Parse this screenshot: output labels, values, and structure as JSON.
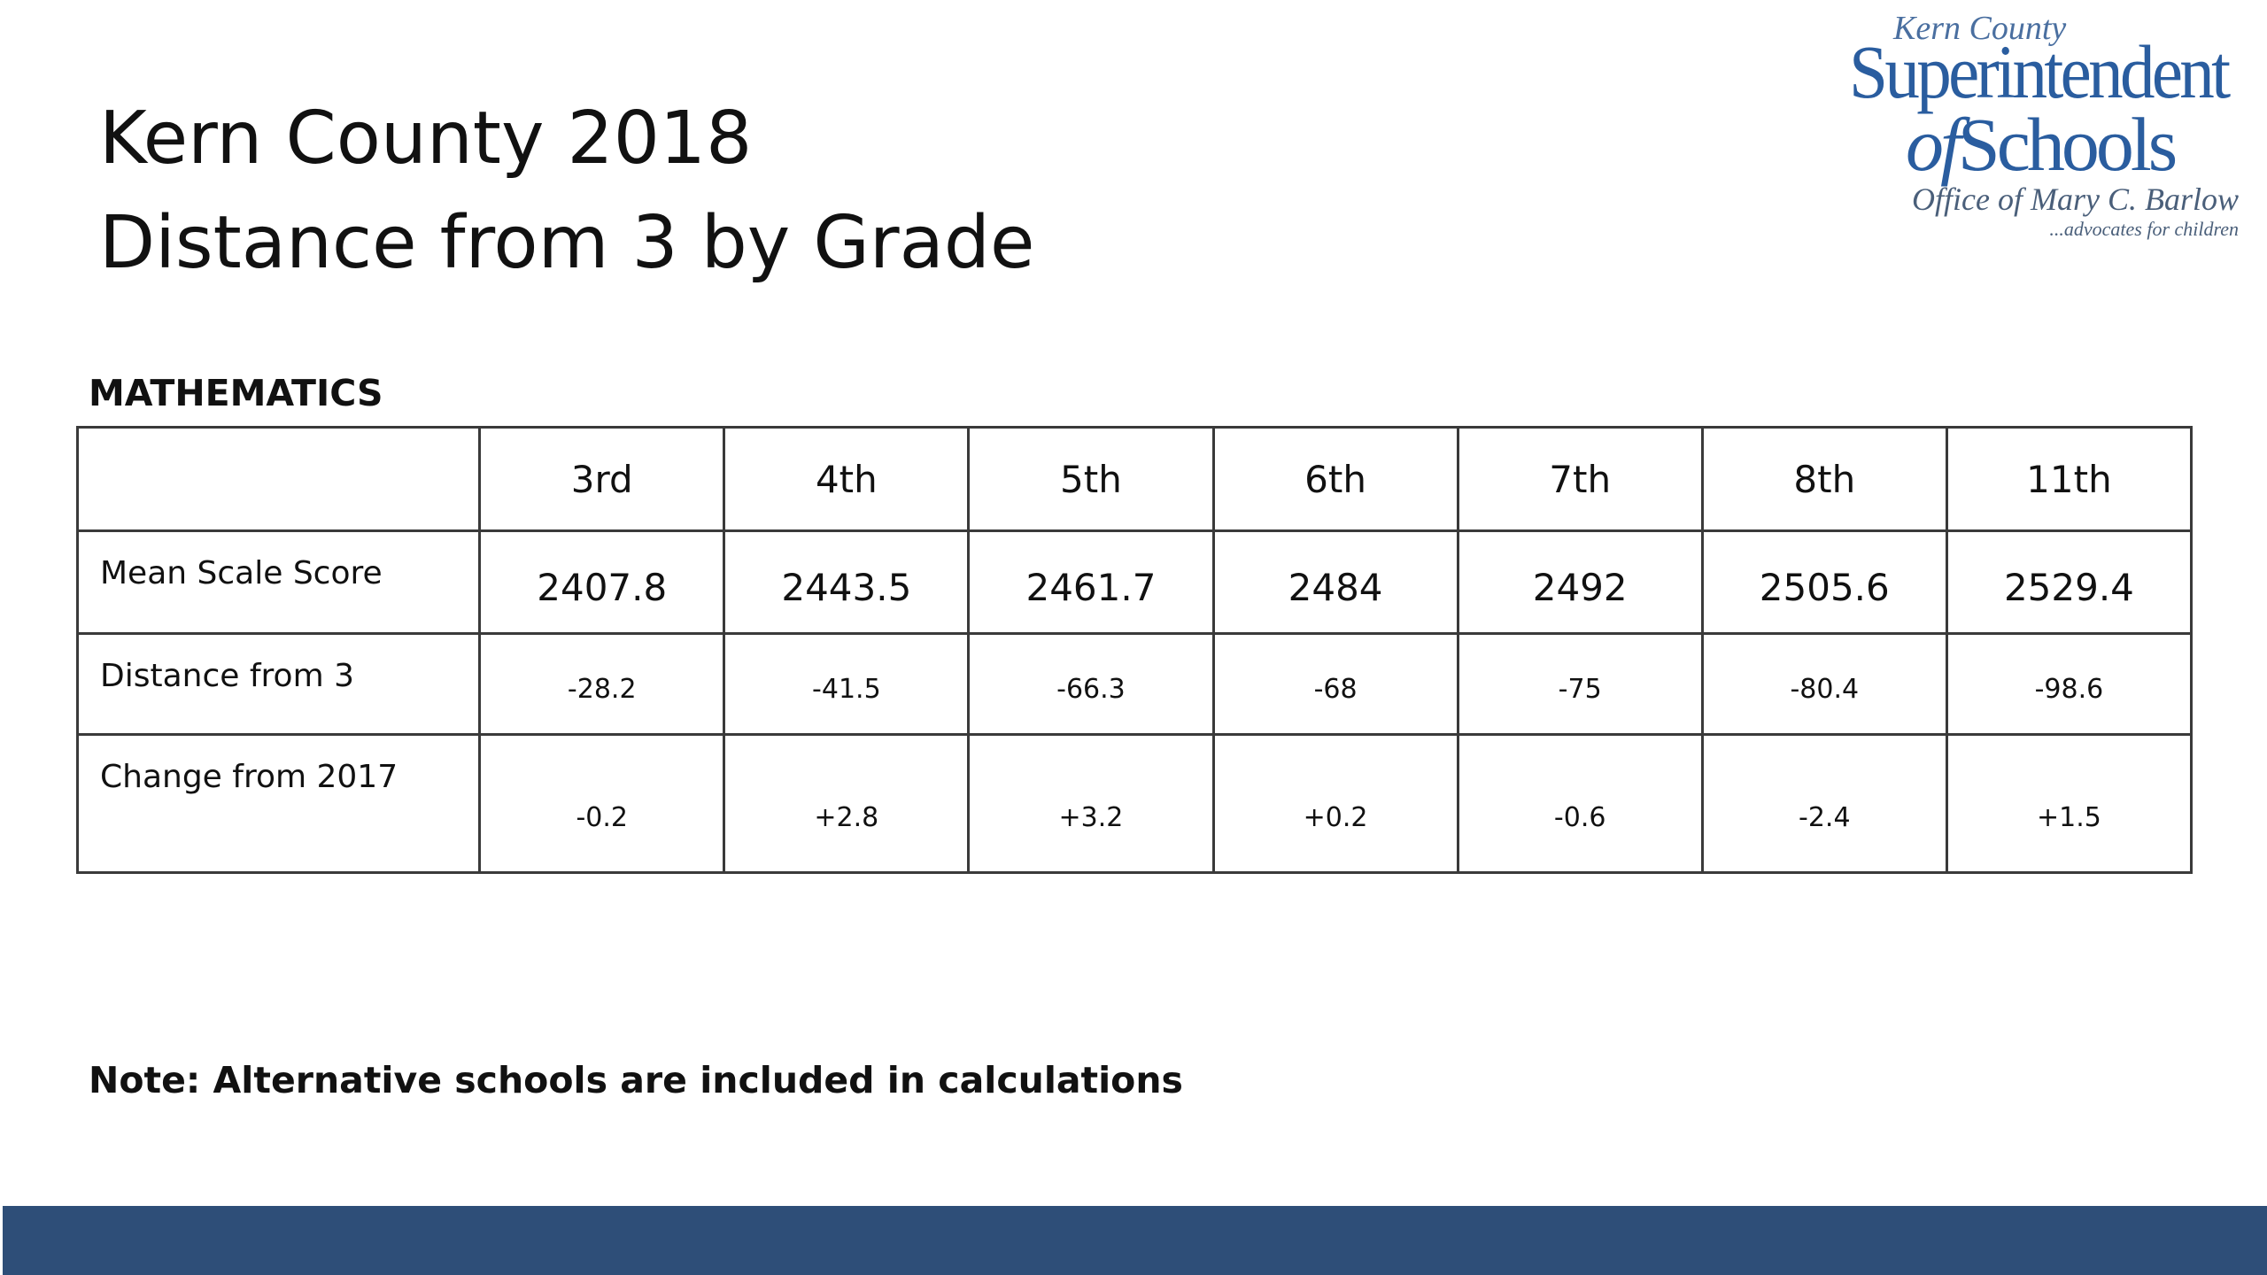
{
  "title": {
    "line1": "Kern County 2018",
    "line2": "Distance from 3 by Grade"
  },
  "logo": {
    "line1": "Kern County",
    "line2": "Superintendent",
    "line3_a": "of",
    "line3_b": "Schools",
    "line4": "Office of Mary C. Barlow",
    "line5": "...advocates for children"
  },
  "subject": "MATHEMATICS",
  "table": {
    "corner": "",
    "grades": [
      "3rd",
      "4th",
      "5th",
      "6th",
      "7th",
      "8th",
      "11th"
    ],
    "rows": [
      {
        "label": "Mean Scale Score",
        "values": [
          "2407.8",
          "2443.5",
          "2461.7",
          "2484",
          "2492",
          "2505.6",
          "2529.4"
        ]
      },
      {
        "label": "Distance from 3",
        "values": [
          "-28.2",
          "-41.5",
          "-66.3",
          "-68",
          "-75",
          "-80.4",
          "-98.6"
        ]
      },
      {
        "label": "Change from 2017",
        "values": [
          "-0.2",
          "+2.8",
          "+3.2",
          "+0.2",
          "-0.6",
          "-2.4",
          "+1.5"
        ]
      }
    ]
  },
  "note": "Note: Alternative schools are included in calculations",
  "colors": {
    "footer_bar": "#2e4e78",
    "logo_blue": "#2a5d9f",
    "grid_line": "#3a3a3a"
  }
}
